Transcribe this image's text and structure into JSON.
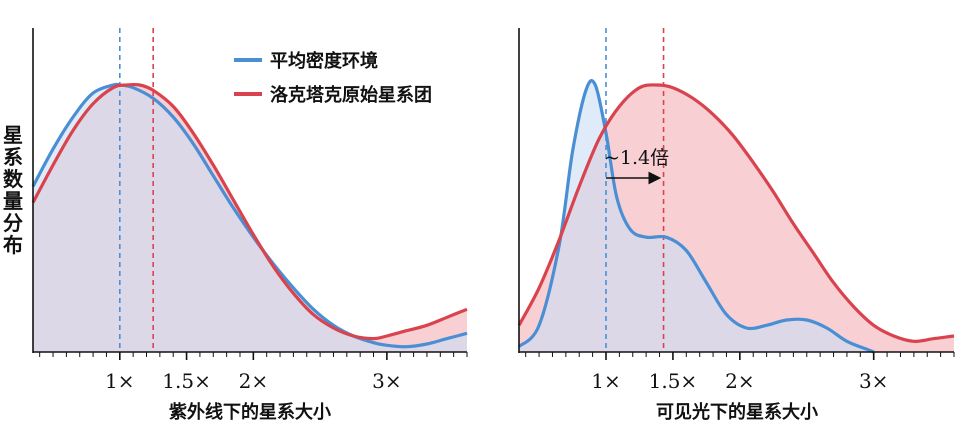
{
  "y_axis_label": "星系数量分布",
  "colors": {
    "blue": "#4a8fd4",
    "red": "#d9434e",
    "blue_fill": "#c9def3",
    "red_fill": "#f7c8cc",
    "overlap_fill": "#d5bcc8"
  },
  "chart_data": [
    {
      "type": "area",
      "xlabel": "紫外线下的星系大小",
      "ylabel": "星系数量分布",
      "x_tick_labels": [
        "1×",
        "1.5×",
        "2×",
        "3×"
      ],
      "x_ticks": [
        1,
        1.5,
        2,
        3
      ],
      "xlim": [
        0.35,
        3.6
      ],
      "ylim": [
        0,
        1.05
      ],
      "legend": {
        "position": "top-right",
        "entries": [
          "平均密度环境",
          "洛克塔克原始星系团"
        ]
      },
      "reference_lines": [
        {
          "series": "平均密度环境",
          "x": 1.0
        },
        {
          "series": "洛克塔克原始星系团",
          "x": 1.25
        }
      ],
      "series": [
        {
          "name": "平均密度环境",
          "color": "#4a8fd4",
          "x": [
            0.35,
            0.5,
            0.65,
            0.8,
            0.95,
            1.0,
            1.1,
            1.25,
            1.4,
            1.55,
            1.7,
            1.85,
            2.0,
            2.15,
            2.3,
            2.45,
            2.6,
            2.75,
            2.9,
            3.0,
            3.15,
            3.3,
            3.45,
            3.6
          ],
          "y": [
            0.62,
            0.76,
            0.88,
            0.97,
            1.0,
            1.0,
            0.99,
            0.95,
            0.88,
            0.78,
            0.66,
            0.54,
            0.43,
            0.33,
            0.24,
            0.16,
            0.1,
            0.06,
            0.035,
            0.025,
            0.02,
            0.03,
            0.05,
            0.07
          ]
        },
        {
          "name": "洛克塔克原始星系团",
          "color": "#d9434e",
          "x": [
            0.35,
            0.5,
            0.65,
            0.8,
            0.95,
            1.05,
            1.15,
            1.25,
            1.4,
            1.55,
            1.7,
            1.85,
            2.0,
            2.15,
            2.3,
            2.45,
            2.6,
            2.75,
            2.9,
            3.0,
            3.15,
            3.3,
            3.45,
            3.6
          ],
          "y": [
            0.56,
            0.7,
            0.83,
            0.93,
            0.99,
            1.0,
            1.0,
            0.98,
            0.92,
            0.82,
            0.7,
            0.57,
            0.44,
            0.32,
            0.22,
            0.14,
            0.09,
            0.06,
            0.05,
            0.06,
            0.08,
            0.1,
            0.13,
            0.16
          ]
        }
      ]
    },
    {
      "type": "area",
      "xlabel": "可见光下的星系大小",
      "ylabel": "星系数量分布",
      "x_tick_labels": [
        "1×",
        "1.5×",
        "2×",
        "3×"
      ],
      "x_ticks": [
        1,
        1.5,
        2,
        3
      ],
      "xlim": [
        0.35,
        3.6
      ],
      "ylim": [
        0,
        1.05
      ],
      "reference_lines": [
        {
          "series": "平均密度环境",
          "x": 1.0
        },
        {
          "series": "洛克塔克原始星系团",
          "x": 1.43
        }
      ],
      "annotation": {
        "text": "~1.4倍",
        "arrow_from": 1.0,
        "arrow_to": 1.43
      },
      "series": [
        {
          "name": "平均密度环境",
          "color": "#4a8fd4",
          "x": [
            0.35,
            0.5,
            0.65,
            0.75,
            0.85,
            0.92,
            1.0,
            1.08,
            1.18,
            1.3,
            1.45,
            1.6,
            1.75,
            1.9,
            2.05,
            2.2,
            2.35,
            2.5,
            2.65,
            2.8,
            2.95,
            3.0
          ],
          "y": [
            0.02,
            0.1,
            0.4,
            0.75,
            0.98,
            1.0,
            0.82,
            0.58,
            0.46,
            0.43,
            0.43,
            0.38,
            0.26,
            0.14,
            0.09,
            0.1,
            0.12,
            0.12,
            0.09,
            0.04,
            0.01,
            0.0
          ]
        },
        {
          "name": "洛克塔克原始星系团",
          "color": "#d9434e",
          "x": [
            0.35,
            0.5,
            0.65,
            0.8,
            0.95,
            1.1,
            1.25,
            1.38,
            1.5,
            1.65,
            1.8,
            1.95,
            2.1,
            2.25,
            2.4,
            2.55,
            2.7,
            2.85,
            3.0,
            3.15,
            3.3,
            3.45,
            3.6
          ],
          "y": [
            0.1,
            0.24,
            0.42,
            0.62,
            0.8,
            0.92,
            0.99,
            1.0,
            0.99,
            0.95,
            0.89,
            0.81,
            0.71,
            0.6,
            0.48,
            0.37,
            0.26,
            0.17,
            0.1,
            0.06,
            0.04,
            0.05,
            0.06
          ]
        }
      ]
    }
  ]
}
